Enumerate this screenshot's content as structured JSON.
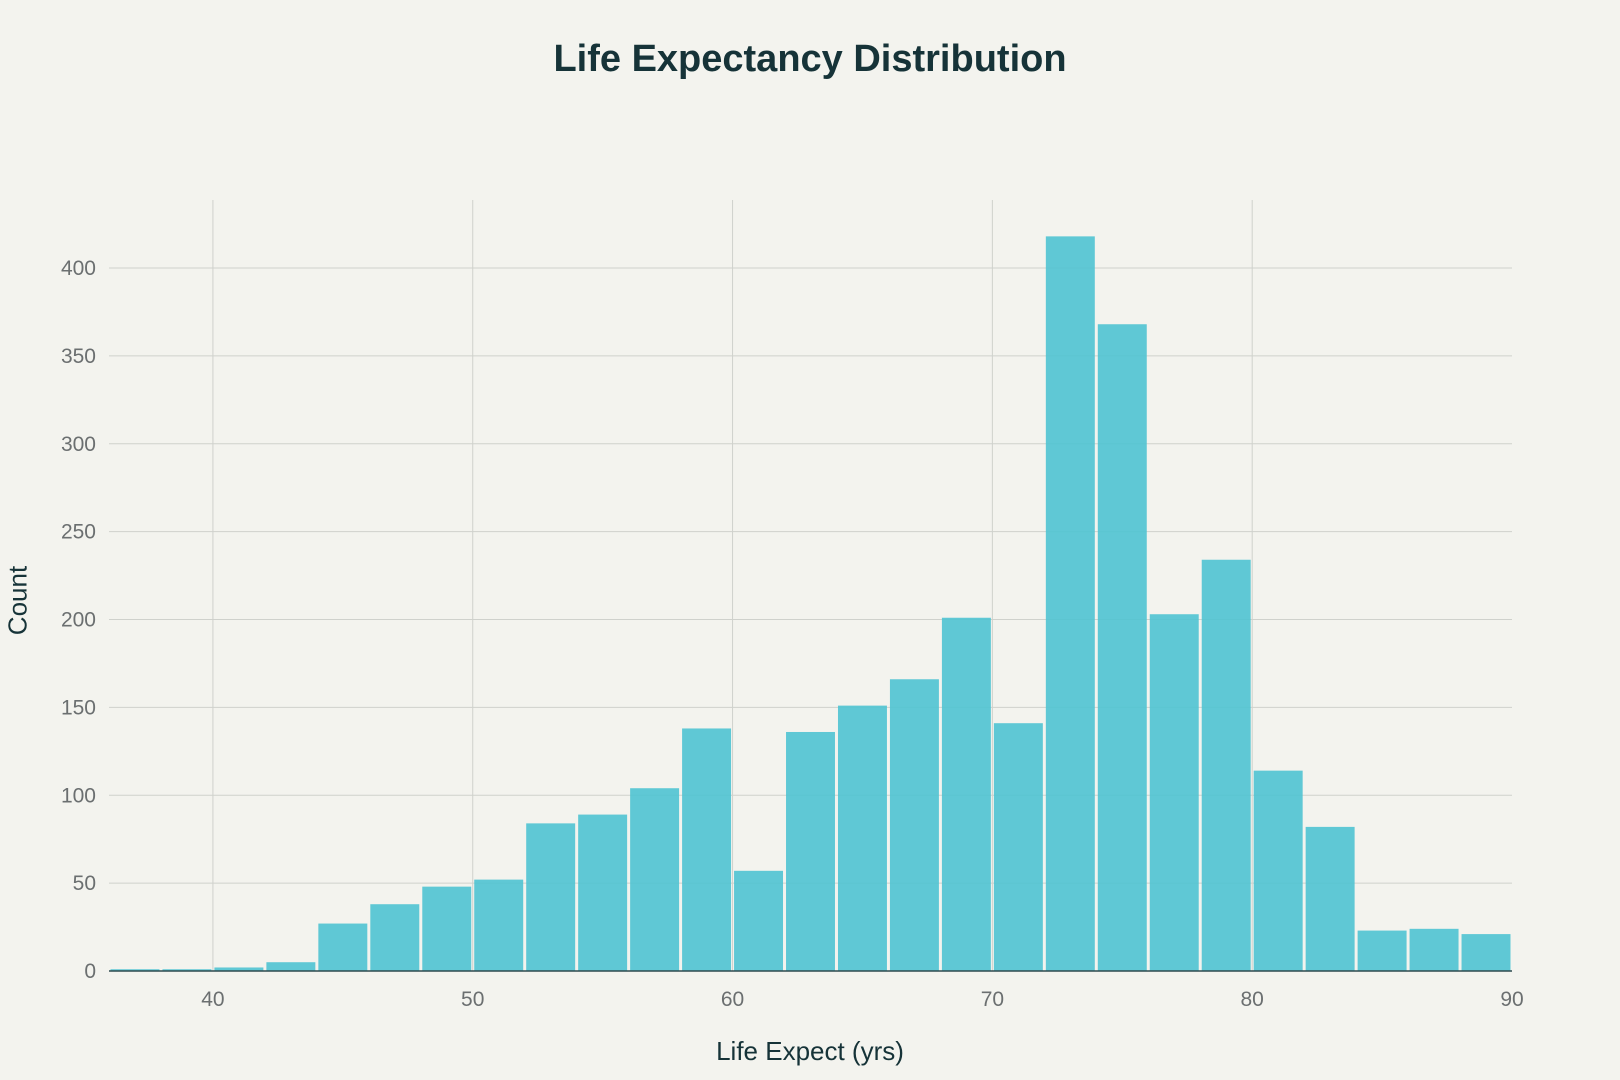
{
  "chart_data": {
    "type": "bar",
    "title": "Life Expectancy Distribution",
    "xlabel": "Life Expect (yrs)",
    "ylabel": "Count",
    "bin_width": 2,
    "bin_starts": [
      36,
      38,
      40,
      42,
      44,
      46,
      48,
      50,
      52,
      54,
      56,
      58,
      60,
      62,
      64,
      66,
      68,
      70,
      72,
      74,
      76,
      78,
      80,
      82,
      84,
      86,
      88
    ],
    "values": [
      1,
      1,
      2,
      5,
      27,
      38,
      48,
      52,
      84,
      89,
      104,
      138,
      57,
      136,
      151,
      166,
      201,
      141,
      418,
      368,
      203,
      234,
      114,
      82,
      23,
      24,
      21
    ],
    "xlim": [
      36,
      90
    ],
    "ylim": [
      0,
      440
    ],
    "x_ticks": [
      40,
      50,
      60,
      70,
      80,
      90
    ],
    "y_ticks": [
      0,
      50,
      100,
      150,
      200,
      250,
      300,
      350,
      400
    ],
    "grid": true,
    "bar_color": "#4fc3d1"
  }
}
